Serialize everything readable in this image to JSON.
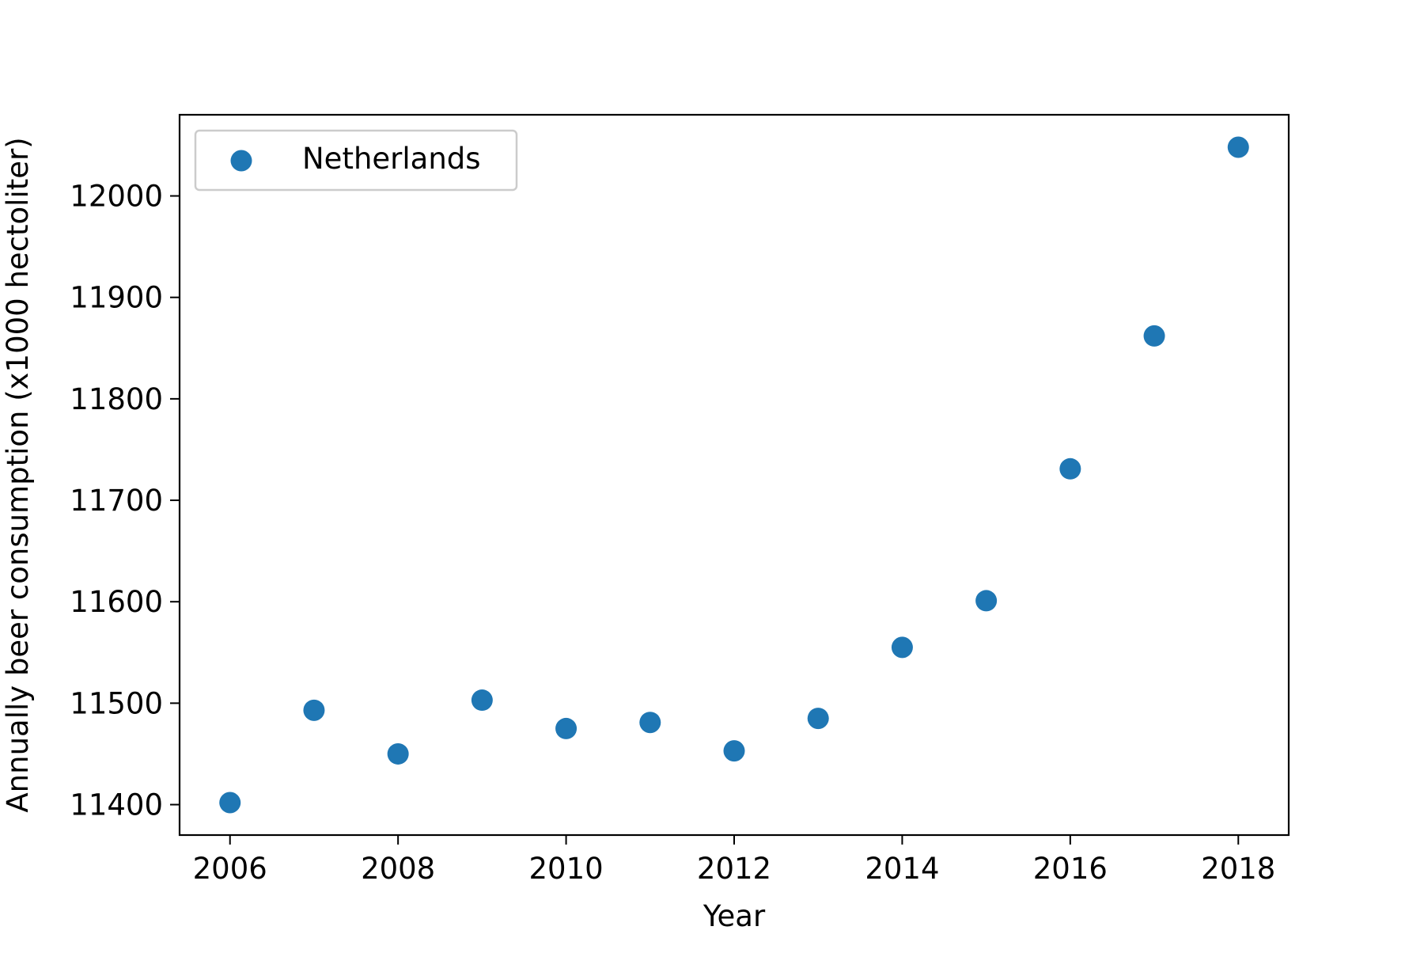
{
  "chart_data": {
    "type": "scatter",
    "title": "",
    "xlabel": "Year",
    "ylabel": "Annually beer consumption (x1000 hectoliter)",
    "xlim": [
      2005.4,
      2018.6
    ],
    "ylim": [
      11370,
      12080
    ],
    "xticks": [
      2006,
      2008,
      2010,
      2012,
      2014,
      2016,
      2018
    ],
    "yticks": [
      11400,
      11500,
      11600,
      11700,
      11800,
      11900,
      12000
    ],
    "grid": false,
    "legend": {
      "position": "top-left"
    },
    "series": [
      {
        "name": "Netherlands",
        "color": "#1f77b4",
        "x": [
          2006,
          2007,
          2008,
          2009,
          2010,
          2011,
          2012,
          2013,
          2014,
          2015,
          2016,
          2017,
          2018
        ],
        "y": [
          11402,
          11493,
          11450,
          11503,
          11475,
          11481,
          11453,
          11485,
          11555,
          11601,
          11731,
          11862,
          12048
        ]
      }
    ]
  }
}
